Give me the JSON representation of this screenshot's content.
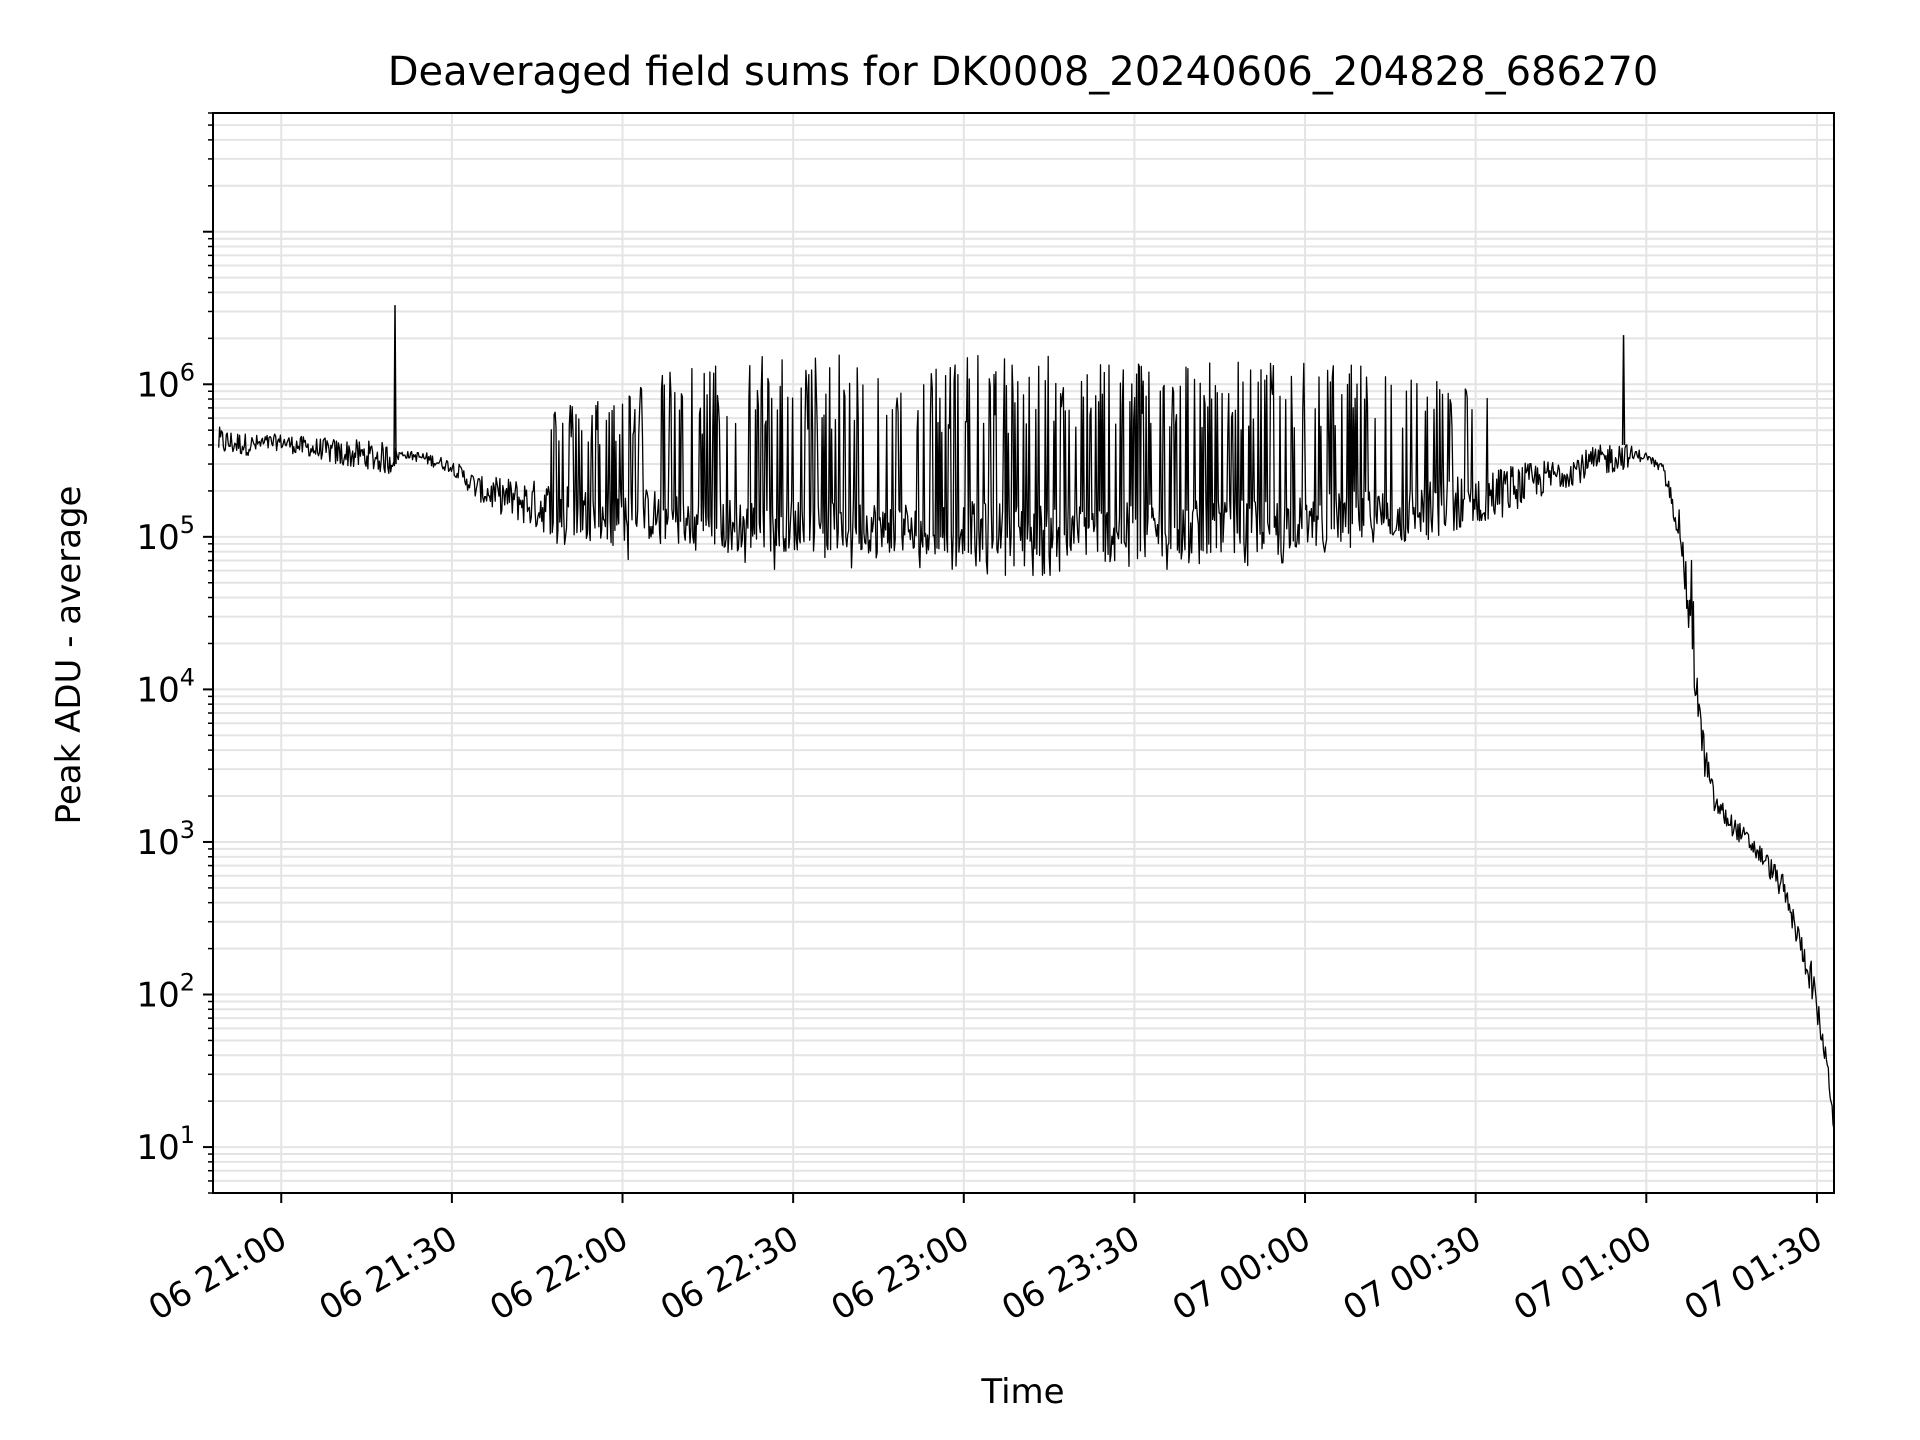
{
  "chart_data": {
    "type": "line",
    "title": "Deaveraged field sums for DK0008_20240606_204828_686270",
    "xlabel": "Time",
    "ylabel": "Peak ADU - average",
    "yscale": "log",
    "grid": true,
    "line_color": "#000000",
    "grid_color": "#e4e4e4",
    "xlim": [
      "06 20:48",
      "07 01:33"
    ],
    "ylim": [
      5,
      60000000
    ],
    "x_ticks": [
      "06 21:00",
      "06 21:30",
      "06 22:00",
      "06 22:30",
      "06 23:00",
      "06 23:30",
      "07 00:00",
      "07 00:30",
      "07 01:00",
      "07 01:30"
    ],
    "y_ticks": [
      {
        "base": "10",
        "exp": "1",
        "value": 10
      },
      {
        "base": "10",
        "exp": "2",
        "value": 100
      },
      {
        "base": "10",
        "exp": "3",
        "value": 1000
      },
      {
        "base": "10",
        "exp": "4",
        "value": 10000
      },
      {
        "base": "10",
        "exp": "5",
        "value": 100000
      },
      {
        "base": "10",
        "exp": "6",
        "value": 1000000
      }
    ],
    "series": [
      {
        "envelope": {
          "x": [
            "06 20:49",
            "06 20:55",
            "06 21:00",
            "06 21:05",
            "06 21:10",
            "06 21:15",
            "06 21:19",
            "06 21:21",
            "06 21:25",
            "06 21:30",
            "06 21:35",
            "06 21:40",
            "06 21:45",
            "06 21:50",
            "06 21:55",
            "06 22:00",
            "06 22:05",
            "06 22:10",
            "06 22:15",
            "06 22:20",
            "06 22:25",
            "06 22:30",
            "06 22:40",
            "06 22:50",
            "06 23:00",
            "06 23:10",
            "06 23:20",
            "06 23:30",
            "06 23:40",
            "06 23:50",
            "07 00:00",
            "07 00:10",
            "07 00:20",
            "07 00:30",
            "07 00:35",
            "07 00:40",
            "07 00:45",
            "07 00:50",
            "07 00:55",
            "07 01:00",
            "07 01:03",
            "07 01:06",
            "07 01:08",
            "07 01:10",
            "07 01:12",
            "07 01:15",
            "07 01:18",
            "07 01:21",
            "07 01:24",
            "07 01:27",
            "07 01:29",
            "07 01:31",
            "07 01:32",
            "07 01:33"
          ],
          "high": [
            800000,
            700000,
            600000,
            800000,
            950000,
            900000,
            950000,
            400000,
            450000,
            380000,
            500000,
            600000,
            700000,
            750000,
            900000,
            1000000,
            1100000,
            1300000,
            1400000,
            1500000,
            1600000,
            1600000,
            1550000,
            1550000,
            1550000,
            1550000,
            1550000,
            1550000,
            1500000,
            1450000,
            1400000,
            1350000,
            1200000,
            1000000,
            900000,
            700000,
            650000,
            750000,
            900000,
            380000,
            300000,
            180000,
            70000,
            10000,
            3000,
            2000,
            1500,
            1000,
            700,
            350,
            250,
            80,
            45,
            40
          ],
          "low": [
            260000,
            320000,
            330000,
            340000,
            300000,
            280000,
            260000,
            320000,
            280000,
            230000,
            170000,
            130000,
            100000,
            80000,
            65000,
            65000,
            70000,
            70000,
            65000,
            60000,
            60000,
            60000,
            60000,
            60000,
            58000,
            55000,
            55000,
            58000,
            60000,
            62000,
            70000,
            80000,
            90000,
            110000,
            130000,
            160000,
            200000,
            230000,
            260000,
            300000,
            180000,
            50000,
            8000,
            2000,
            1200,
            900,
            700,
            450,
            250,
            130,
            60,
            35,
            20,
            12
          ],
          "typical": [
            420000,
            400000,
            420000,
            380000,
            350000,
            340000,
            320000,
            350000,
            330000,
            290000,
            200000,
            180000,
            160000,
            150000,
            140000,
            140000,
            140000,
            130000,
            125000,
            120000,
            120000,
            120000,
            118000,
            116000,
            115000,
            112000,
            110000,
            112000,
            115000,
            118000,
            125000,
            135000,
            150000,
            180000,
            200000,
            230000,
            260000,
            300000,
            340000,
            340000,
            270000,
            110000,
            20000,
            4000,
            1800,
            1300,
            1000,
            750,
            500,
            220,
            130,
            50,
            30,
            15
          ]
        }
      }
    ]
  }
}
